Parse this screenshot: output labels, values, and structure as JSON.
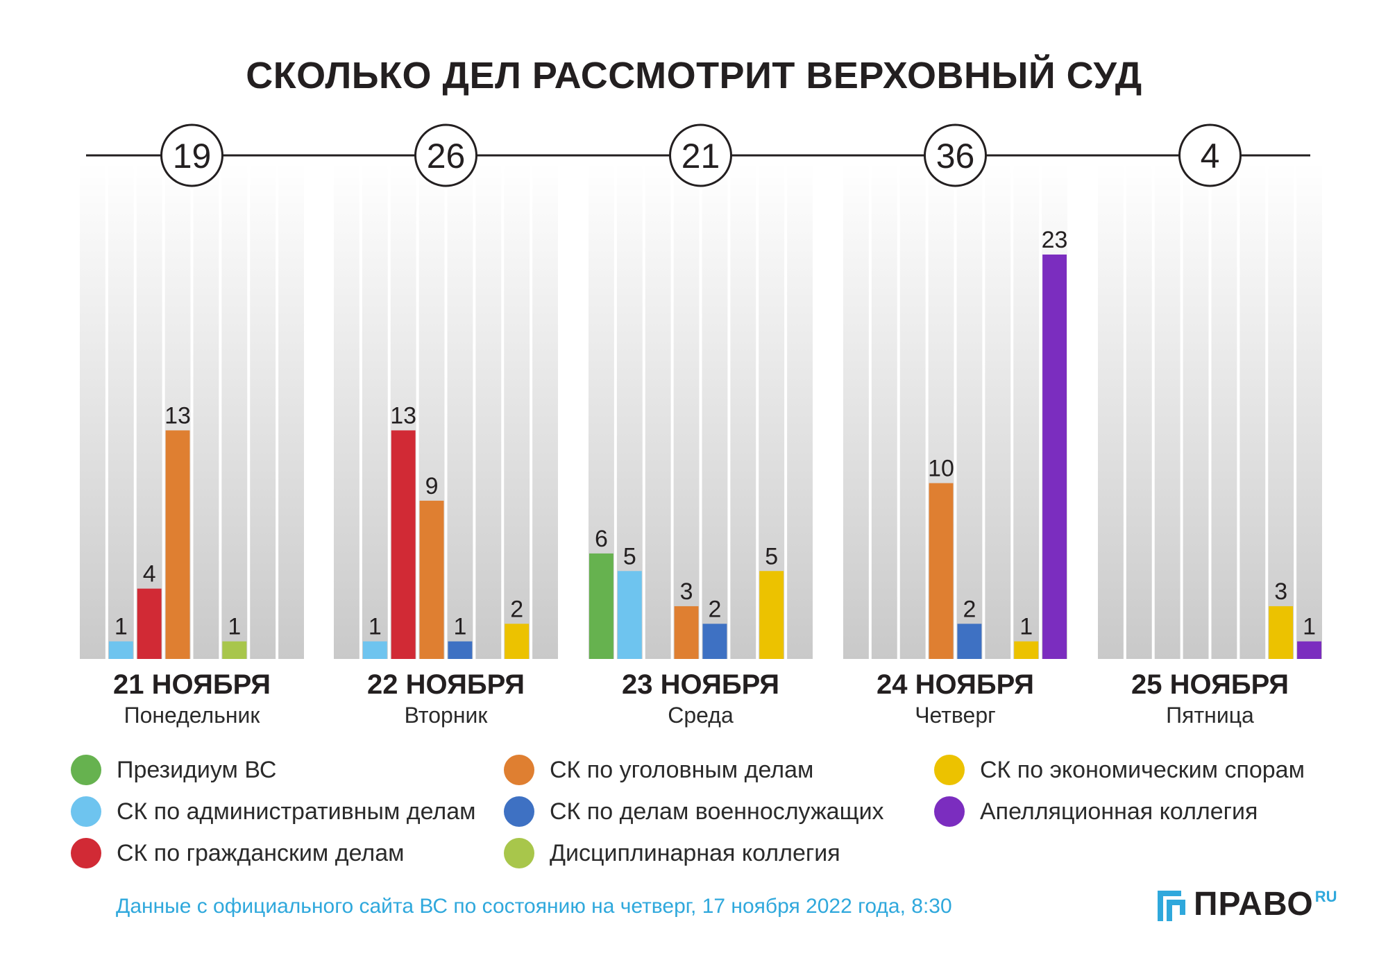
{
  "title": "СКОЛЬКО ДЕЛ РАССМОТРИТ ВЕРХОВНЫЙ СУД",
  "colors": {
    "presidium": "#66b24f",
    "admin": "#6ec4ef",
    "civil": "#d12a35",
    "criminal": "#df7f31",
    "military": "#3e71c3",
    "disciplinary": "#a8c64b",
    "economic": "#ecc200",
    "appeal": "#7b2dbf"
  },
  "legend": [
    {
      "key": "presidium",
      "label": "Президиум ВС"
    },
    {
      "key": "admin",
      "label": "СК по административным делам"
    },
    {
      "key": "civil",
      "label": "СК по гражданским делам"
    },
    {
      "key": "criminal",
      "label": "СК по уголовным делам"
    },
    {
      "key": "military",
      "label": "СК по делам военнослужащих"
    },
    {
      "key": "disciplinary",
      "label": "Дисциплинарная коллегия"
    },
    {
      "key": "economic",
      "label": "СК по экономическим спорам"
    },
    {
      "key": "appeal",
      "label": "Апелляционная коллегия"
    }
  ],
  "source_note": "Данные с официального сайта ВС по состоянию на четверг, 17 ноября 2022 года, 8:30",
  "logo": {
    "word": "ПРАВО",
    "suffix": "RU"
  },
  "chart_data": {
    "type": "bar",
    "title": "СКОЛЬКО ДЕЛ РАССМОТРИТ ВЕРХОВНЫЙ СУД",
    "ylim": [
      0,
      28
    ],
    "groups": [
      {
        "date": "21 НОЯБРЯ",
        "weekday": "Понедельник",
        "total": "19",
        "bars": [
          {
            "slot": 1,
            "key": "admin",
            "value": 1
          },
          {
            "slot": 2,
            "key": "civil",
            "value": 4
          },
          {
            "slot": 3,
            "key": "criminal",
            "value": 13
          },
          {
            "slot": 5,
            "key": "disciplinary",
            "value": 1
          }
        ]
      },
      {
        "date": "22 НОЯБРЯ",
        "weekday": "Вторник",
        "total": "26",
        "bars": [
          {
            "slot": 1,
            "key": "admin",
            "value": 1
          },
          {
            "slot": 2,
            "key": "civil",
            "value": 13
          },
          {
            "slot": 3,
            "key": "criminal",
            "value": 9
          },
          {
            "slot": 4,
            "key": "military",
            "value": 1
          },
          {
            "slot": 6,
            "key": "economic",
            "value": 2
          }
        ]
      },
      {
        "date": "23 НОЯБРЯ",
        "weekday": "Среда",
        "total": "21",
        "bars": [
          {
            "slot": 0,
            "key": "presidium",
            "value": 6
          },
          {
            "slot": 1,
            "key": "admin",
            "value": 5
          },
          {
            "slot": 3,
            "key": "criminal",
            "value": 3
          },
          {
            "slot": 4,
            "key": "military",
            "value": 2
          },
          {
            "slot": 6,
            "key": "economic",
            "value": 5
          }
        ]
      },
      {
        "date": "24 НОЯБРЯ",
        "weekday": "Четверг",
        "total": "36",
        "bars": [
          {
            "slot": 3,
            "key": "criminal",
            "value": 10
          },
          {
            "slot": 4,
            "key": "military",
            "value": 2
          },
          {
            "slot": 6,
            "key": "economic",
            "value": 1
          },
          {
            "slot": 7,
            "key": "appeal",
            "value": 23
          }
        ]
      },
      {
        "date": "25 НОЯБРЯ",
        "weekday": "Пятница",
        "total": "4",
        "bars": [
          {
            "slot": 6,
            "key": "economic",
            "value": 3
          },
          {
            "slot": 7,
            "key": "appeal",
            "value": 1
          }
        ]
      }
    ]
  }
}
